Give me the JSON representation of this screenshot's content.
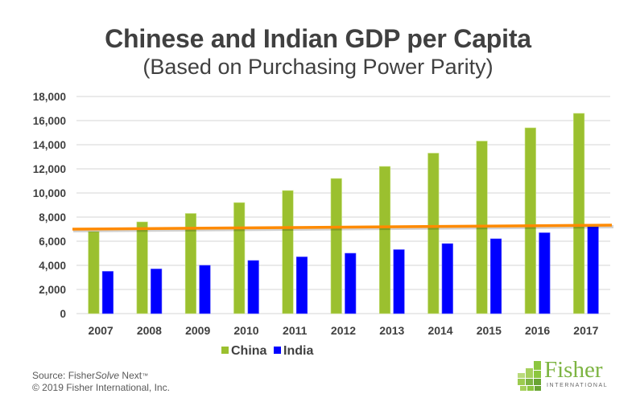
{
  "header": {
    "title": "Chinese and Indian GDP per Capita",
    "subtitle": "(Based on Purchasing Power Parity)"
  },
  "footer": {
    "source_prefix": "Source: Fisher",
    "source_italic": "Solve",
    "source_suffix": " Next",
    "trademark": "™",
    "copyright": "© 2019 Fisher International, Inc."
  },
  "logo": {
    "word": "Fisher",
    "sub": "INTERNATIONAL",
    "color": "#7db442"
  },
  "chart_data": {
    "type": "bar",
    "title": "Chinese and Indian GDP per Capita",
    "subtitle": "(Based on Purchasing Power Parity)",
    "xlabel": "",
    "ylabel": "",
    "categories": [
      "2007",
      "2008",
      "2009",
      "2010",
      "2011",
      "2012",
      "2013",
      "2014",
      "2015",
      "2016",
      "2017"
    ],
    "series": [
      {
        "name": "China",
        "color": "#9bc02f",
        "values": [
          6800,
          7600,
          8300,
          9200,
          10200,
          11200,
          12200,
          13300,
          14300,
          15400,
          16600
        ]
      },
      {
        "name": "India",
        "color": "#0000ff",
        "values": [
          3500,
          3700,
          4000,
          4400,
          4700,
          5000,
          5300,
          5800,
          6200,
          6700,
          7200
        ]
      }
    ],
    "annotations": [
      {
        "type": "trend-line",
        "color": "#ff8a00",
        "from_value": 7000,
        "to_value": 7330
      }
    ],
    "ylim": [
      0,
      18000
    ],
    "yticks": [
      0,
      2000,
      4000,
      6000,
      8000,
      10000,
      12000,
      14000,
      16000,
      18000
    ],
    "ytick_labels": [
      "0",
      "2,000",
      "4,000",
      "6,000",
      "8,000",
      "10,000",
      "12,000",
      "14,000",
      "16,000",
      "18,000"
    ],
    "grid": true,
    "legend": "bottom-center"
  }
}
